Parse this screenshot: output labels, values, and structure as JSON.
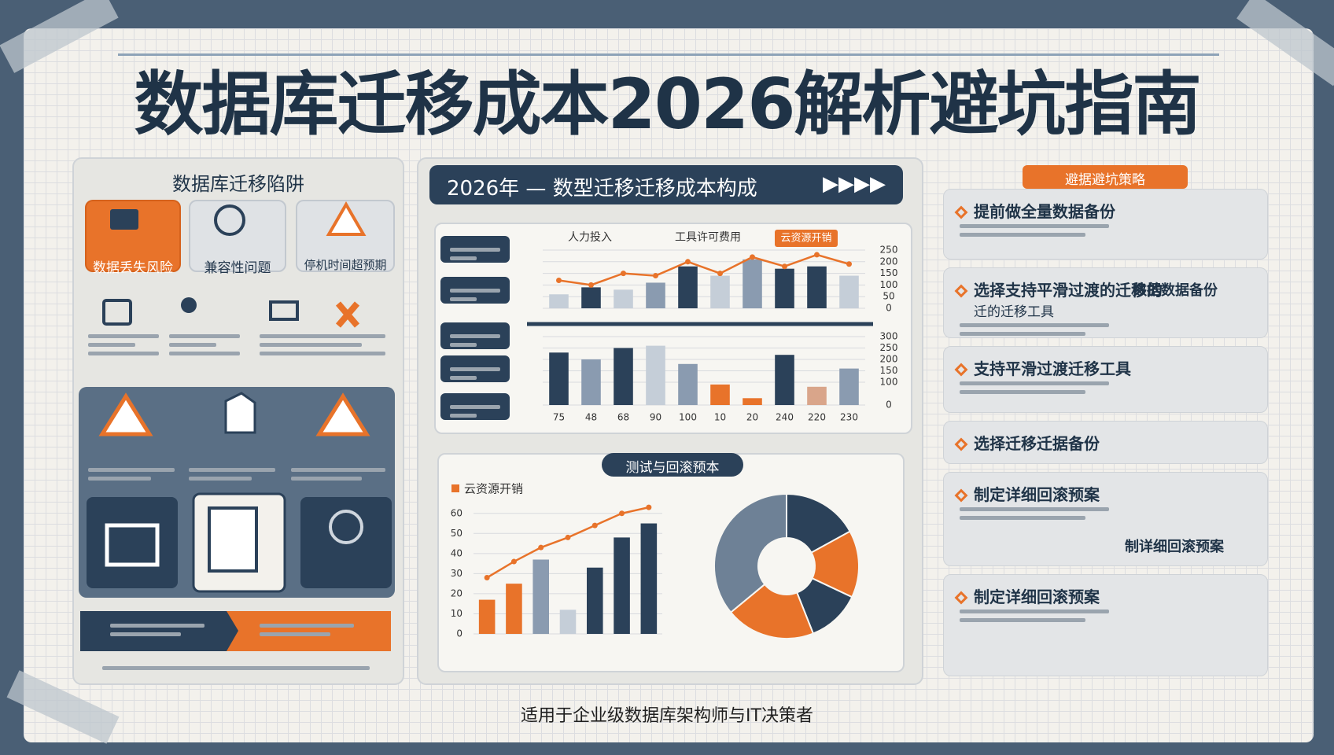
{
  "title": "数据库迁移成本2026解析避坑指南",
  "footer": "适用于企业级数据库架构师与IT决策者",
  "traps": {
    "heading": "数据库迁移陷阱",
    "cards": [
      "数据丢失风险",
      "兼容性问题",
      "停机时间超预期"
    ]
  },
  "cost": {
    "heading": "2026年 — 数型迁移迁移成本构成",
    "labels": [
      "人力投入",
      "工具许可费用",
      "云资源开销"
    ],
    "upper": {
      "type": "bar",
      "values": [
        60,
        90,
        80,
        110,
        180,
        140,
        210,
        170,
        180,
        140
      ],
      "colors": [
        "#c5ced8",
        "#2b4159",
        "#c5ced8",
        "#8a9bb0",
        "#2b4159",
        "#c5ced8",
        "#8a9bb0",
        "#2b4159",
        "#2b4159",
        "#c5ced8"
      ],
      "line": [
        120,
        100,
        150,
        140,
        200,
        150,
        220,
        180,
        230,
        190
      ],
      "line_color": "#e8732a",
      "ylim": [
        0,
        250
      ],
      "yticks": [
        0,
        50,
        100,
        150,
        200,
        250
      ]
    },
    "lower": {
      "type": "bar",
      "categories": [
        "75",
        "48",
        "68",
        "90",
        "100",
        "10",
        "20",
        "240",
        "220",
        "230"
      ],
      "values": [
        230,
        200,
        250,
        260,
        180,
        90,
        30,
        220,
        80,
        160
      ],
      "colors": [
        "#2b4159",
        "#8a9bb0",
        "#2b4159",
        "#c5ced8",
        "#8a9bb0",
        "#e8732a",
        "#e8732a",
        "#2b4159",
        "#d9a58a",
        "#8a9bb0"
      ],
      "ylim": [
        0,
        300
      ],
      "yticks": [
        0,
        100,
        150,
        200,
        250,
        300
      ]
    }
  },
  "test": {
    "heading": "测试与回滚预本",
    "bar_chart": {
      "type": "bar",
      "legend": "云资源开销",
      "values": [
        17,
        25,
        37,
        12,
        33,
        48,
        55
      ],
      "colors": [
        "#e8732a",
        "#e8732a",
        "#8a9bb0",
        "#c5ced8",
        "#2b4159",
        "#2b4159",
        "#2b4159"
      ],
      "line": [
        28,
        36,
        43,
        48,
        54,
        60,
        63
      ],
      "line_color": "#e8732a",
      "ylim": [
        0,
        65
      ],
      "yticks": [
        0,
        10,
        20,
        30,
        40,
        50,
        60
      ]
    },
    "donut": {
      "type": "pie",
      "values": [
        17,
        15,
        12,
        20,
        36
      ],
      "colors": [
        "#2b4159",
        "#e8732a",
        "#2b4159",
        "#e8732a",
        "#6e8196"
      ]
    }
  },
  "strategies": {
    "heading": "避据避坑策略",
    "items": [
      {
        "title": "提前做全量数据备份"
      },
      {
        "title": "选择支持平滑过渡的迁移的",
        "sub": "迁的迁移工具",
        "side": "数据数据备份"
      },
      {
        "title": "支持平滑过渡迁移工具"
      },
      {
        "title": "选择迁移迁据备份"
      },
      {
        "title": "制定详细回滚预案",
        "side": "制详细回滚预案"
      },
      {
        "title": "制定详细回滚预案"
      }
    ]
  }
}
